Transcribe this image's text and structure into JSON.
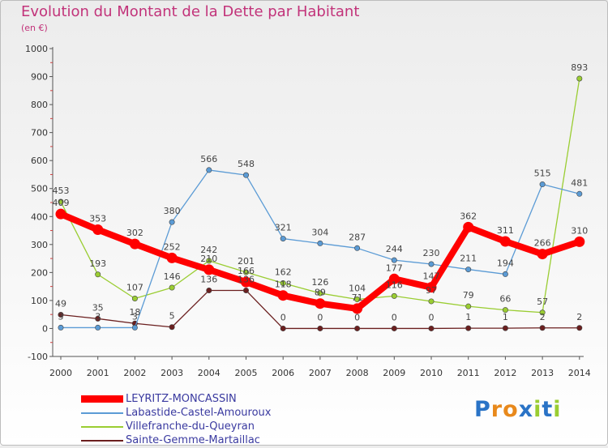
{
  "header": {
    "title": "Evolution du Montant de la Dette par Habitant",
    "subtitle": "(en €)"
  },
  "chart_data": {
    "type": "line",
    "title": "Evolution du Montant de la Dette par Habitant",
    "subtitle": "(en €)",
    "x": [
      2000,
      2001,
      2002,
      2003,
      2004,
      2005,
      2006,
      2007,
      2008,
      2009,
      2010,
      2011,
      2012,
      2013,
      2014
    ],
    "ylim": [
      -100,
      1000
    ],
    "yticks": [
      -100,
      0,
      100,
      200,
      300,
      400,
      500,
      600,
      700,
      800,
      900,
      1000
    ],
    "grid": false,
    "legend_position": "bottom",
    "series": [
      {
        "name": "LEYRITZ-MONCASSIN",
        "color": "#ff0000",
        "values": [
          409,
          353,
          302,
          252,
          210,
          166,
          118,
          89,
          71,
          177,
          147,
          362,
          311,
          266,
          310
        ]
      },
      {
        "name": "Labastide-Castel-Amouroux",
        "color": "#5b9bd5",
        "values": [
          3,
          3,
          3,
          380,
          566,
          548,
          321,
          304,
          287,
          244,
          230,
          211,
          194,
          515,
          481
        ]
      },
      {
        "name": "Villefranche-du-Queyran",
        "color": "#9acd32",
        "values": [
          453,
          193,
          107,
          146,
          242,
          201,
          162,
          126,
          104,
          116,
          97,
          79,
          66,
          57,
          893
        ]
      },
      {
        "name": "Sainte-Gemme-Martaillac",
        "color": "#6b1f1f",
        "values": [
          49,
          35,
          18,
          5,
          136,
          136,
          0,
          0,
          0,
          0,
          0,
          1,
          1,
          2,
          2
        ]
      }
    ]
  },
  "logo": {
    "text": "Proxiti"
  }
}
